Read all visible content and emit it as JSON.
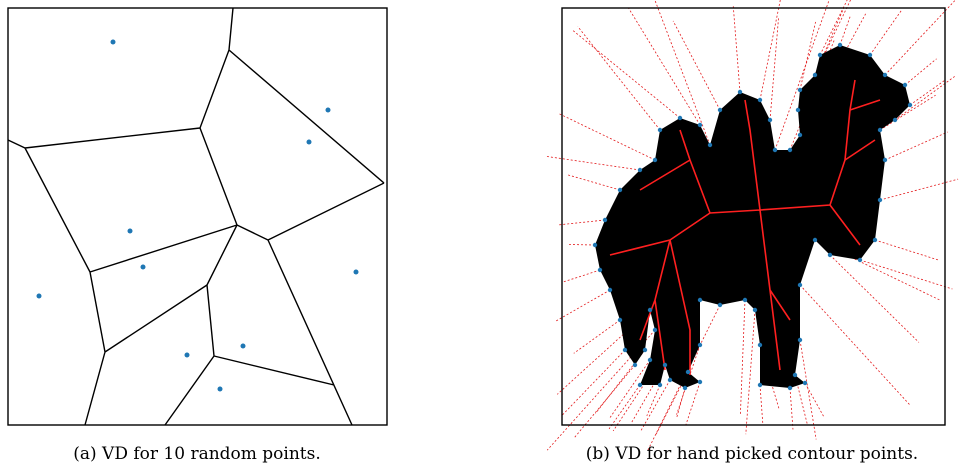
{
  "figure": {
    "panels": [
      {
        "caption": "(a) VD for 10 random points."
      },
      {
        "caption": "(b) VD for hand picked contour points."
      }
    ]
  }
}
